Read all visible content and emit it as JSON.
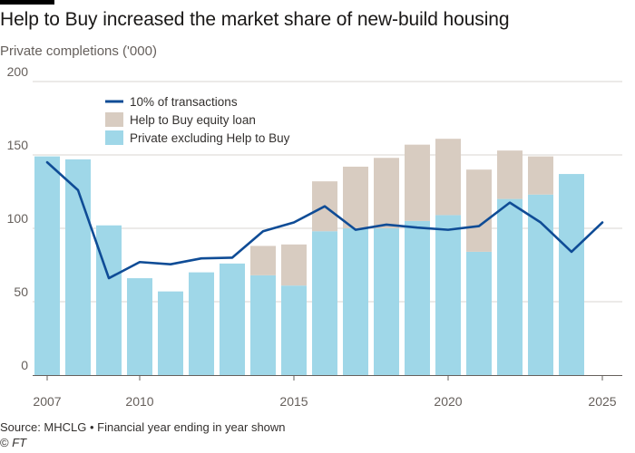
{
  "header": {
    "title": "Help to Buy increased the market share of new-build housing",
    "subtitle": "Private completions ('000)"
  },
  "footer": {
    "source": "Source: MHCLG • Financial year ending in year shown",
    "copyright_symbol": "©",
    "brand": "FT"
  },
  "colors": {
    "private_excl": "#9fd7e8",
    "help_to_buy": "#d8ccc1",
    "line": "#0f4c96",
    "grid": "#d9d6d2",
    "axis_text": "#66605c"
  },
  "chart_data": {
    "type": "bar",
    "title": "Help to Buy increased the market share of new-build housing",
    "ylabel": "Private completions ('000)",
    "xlabel": "",
    "ylim": [
      0,
      200
    ],
    "yticks": [
      0,
      50,
      100,
      150,
      200
    ],
    "xticks": [
      2007,
      2010,
      2015,
      2020,
      2025
    ],
    "legend": [
      {
        "name": "10% of transactions",
        "kind": "line"
      },
      {
        "name": "Help to Buy equity loan",
        "kind": "bar"
      },
      {
        "name": "Private excluding Help to Buy",
        "kind": "bar"
      }
    ],
    "bar_years": [
      2007,
      2008,
      2009,
      2010,
      2011,
      2012,
      2013,
      2014,
      2015,
      2016,
      2017,
      2018,
      2019,
      2020,
      2021,
      2022,
      2023,
      2024
    ],
    "series": [
      {
        "name": "Private excluding Help to Buy",
        "kind": "stacked-bar",
        "values": [
          149,
          147,
          102,
          66,
          57,
          70,
          76,
          68,
          61,
          98,
          100,
          100,
          105,
          109,
          84,
          120,
          123,
          137
        ]
      },
      {
        "name": "Help to Buy equity loan",
        "kind": "stacked-bar",
        "values": [
          0,
          0,
          0,
          0,
          0,
          0,
          0,
          20,
          28,
          34,
          42,
          48,
          52,
          52,
          56,
          33,
          26,
          0
        ]
      },
      {
        "name": "10% of transactions",
        "kind": "line",
        "x": [
          2007,
          2008,
          2009,
          2010,
          2011,
          2012,
          2013,
          2014,
          2015,
          2016,
          2017,
          2018,
          2019,
          2020,
          2021,
          2022,
          2023,
          2024,
          2025
        ],
        "values": [
          145,
          126,
          66,
          77,
          75.5,
          79.5,
          80,
          98,
          104,
          115,
          99,
          102.5,
          100.5,
          99,
          101.5,
          117.5,
          104,
          84,
          104
        ]
      }
    ]
  }
}
